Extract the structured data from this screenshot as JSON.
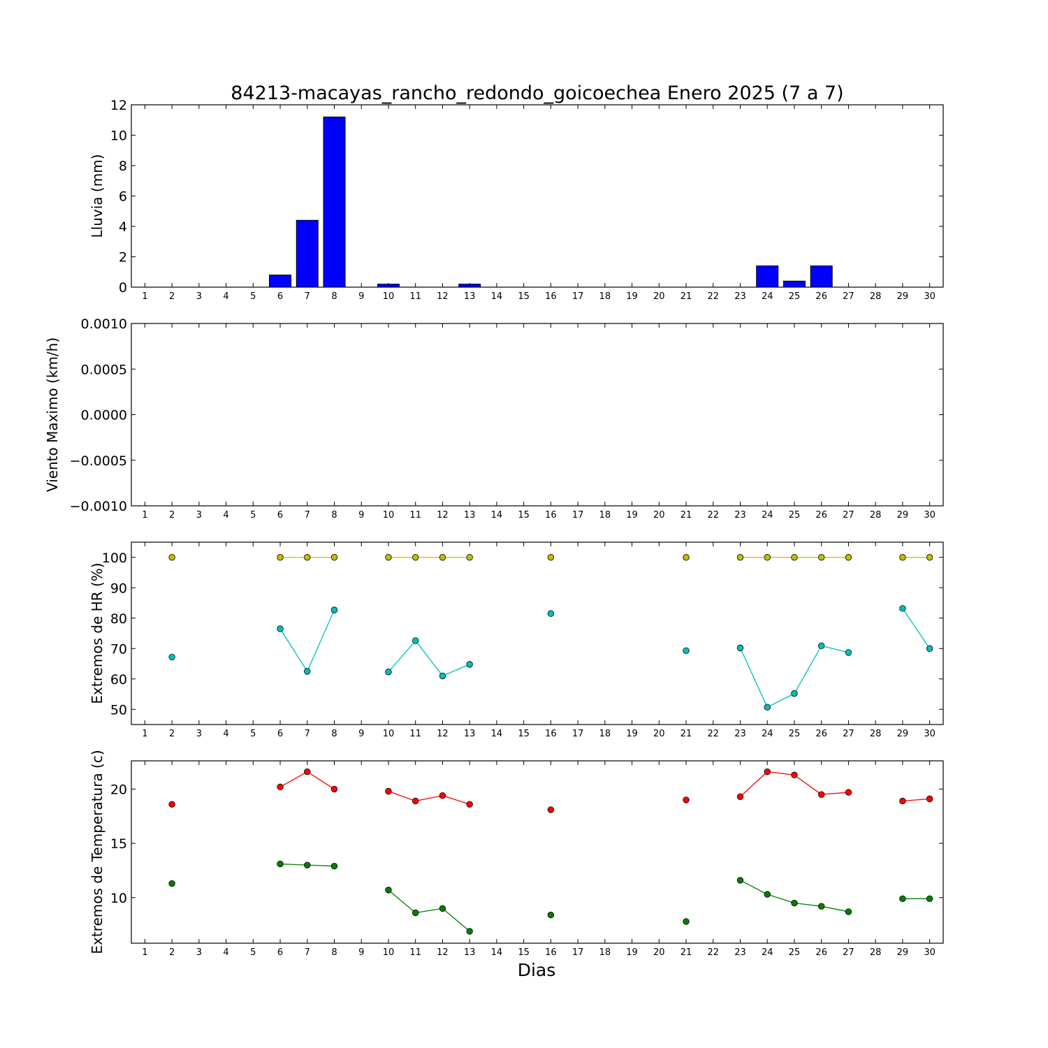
{
  "figure": {
    "title": "84213-macayas_rancho_redondo_goicoechea Enero 2025  (7 a 7)",
    "xlabel": "Dias"
  },
  "chart_data": [
    {
      "type": "bar",
      "ylabel": "Lluvia (mm)",
      "x": [
        1,
        2,
        3,
        4,
        5,
        6,
        7,
        8,
        9,
        10,
        11,
        12,
        13,
        14,
        15,
        16,
        17,
        18,
        19,
        20,
        21,
        22,
        23,
        24,
        25,
        26,
        27,
        28,
        29,
        30
      ],
      "values": [
        0,
        0,
        0,
        0,
        0,
        0.8,
        4.4,
        11.2,
        0,
        0.2,
        0,
        0,
        0.2,
        0,
        0,
        0,
        0,
        0,
        0,
        0,
        0,
        0,
        0,
        1.4,
        0.4,
        1.4,
        0,
        0,
        0,
        0
      ],
      "ylim": [
        0,
        12
      ],
      "yticks": [
        "0",
        "2",
        "4",
        "6",
        "8",
        "10",
        "12"
      ],
      "color": "#0000ff"
    },
    {
      "type": "line",
      "ylabel": "Viento Maximo (km/h)",
      "x": [
        1,
        2,
        3,
        4,
        5,
        6,
        7,
        8,
        9,
        10,
        11,
        12,
        13,
        14,
        15,
        16,
        17,
        18,
        19,
        20,
        21,
        22,
        23,
        24,
        25,
        26,
        27,
        28,
        29,
        30
      ],
      "series": [],
      "ylim": [
        -0.001,
        0.001
      ],
      "yticks": [
        "−0.0010",
        "−0.0005",
        "0.0000",
        "0.0005",
        "0.0010"
      ]
    },
    {
      "type": "line",
      "ylabel": "Extremos de HR (%)",
      "x": [
        1,
        2,
        3,
        4,
        5,
        6,
        7,
        8,
        9,
        10,
        11,
        12,
        13,
        14,
        15,
        16,
        17,
        18,
        19,
        20,
        21,
        22,
        23,
        24,
        25,
        26,
        27,
        28,
        29,
        30
      ],
      "series": [
        {
          "color": "#bfbf00",
          "values": [
            null,
            100,
            null,
            null,
            null,
            100,
            100,
            100,
            null,
            100,
            100,
            100,
            100,
            null,
            null,
            100,
            null,
            null,
            null,
            null,
            100,
            null,
            100,
            100,
            100,
            100,
            100,
            null,
            100,
            100
          ]
        },
        {
          "color": "#00bfbf",
          "values": [
            null,
            67.2,
            null,
            null,
            null,
            76.5,
            62.5,
            82.7,
            null,
            62.3,
            72.6,
            61,
            64.8,
            null,
            null,
            81.5,
            null,
            null,
            null,
            null,
            69.3,
            null,
            70.2,
            50.7,
            55.2,
            70.9,
            68.7,
            null,
            83.2,
            70
          ]
        }
      ],
      "ylim": [
        45,
        105
      ],
      "yticks": [
        "50",
        "60",
        "70",
        "80",
        "90",
        "100"
      ]
    },
    {
      "type": "line",
      "ylabel": "Extremos de Temperatura (c)",
      "x": [
        1,
        2,
        3,
        4,
        5,
        6,
        7,
        8,
        9,
        10,
        11,
        12,
        13,
        14,
        15,
        16,
        17,
        18,
        19,
        20,
        21,
        22,
        23,
        24,
        25,
        26,
        27,
        28,
        29,
        30
      ],
      "series": [
        {
          "color": "#ff0000",
          "values": [
            null,
            18.6,
            null,
            null,
            null,
            20.2,
            21.6,
            20,
            null,
            19.8,
            18.9,
            19.4,
            18.6,
            null,
            null,
            18.1,
            null,
            null,
            null,
            null,
            19,
            null,
            19.3,
            21.6,
            21.3,
            19.5,
            19.7,
            null,
            18.9,
            19.1
          ]
        },
        {
          "color": "#008000",
          "values": [
            null,
            11.3,
            null,
            null,
            null,
            13.1,
            13,
            12.9,
            null,
            10.7,
            8.6,
            9,
            6.9,
            null,
            null,
            8.4,
            null,
            null,
            null,
            null,
            7.8,
            null,
            11.6,
            10.3,
            9.5,
            9.2,
            8.7,
            null,
            9.9,
            9.9
          ]
        }
      ],
      "ylim": [
        5.8,
        22.6
      ],
      "yticks": [
        "10",
        "15",
        "20"
      ]
    }
  ]
}
